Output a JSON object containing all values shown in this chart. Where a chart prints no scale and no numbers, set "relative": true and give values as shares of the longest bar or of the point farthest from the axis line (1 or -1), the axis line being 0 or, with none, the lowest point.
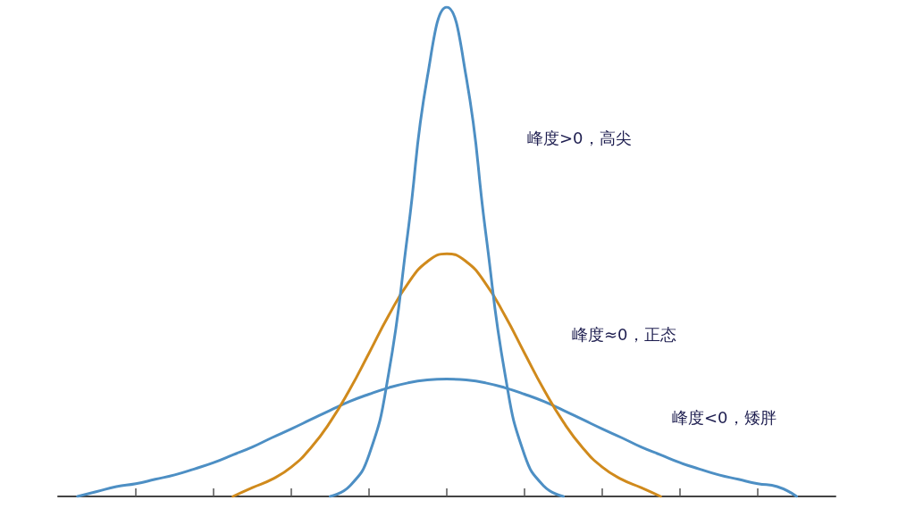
{
  "chart_data": {
    "type": "line",
    "relative": true,
    "marker": "none",
    "grid": false,
    "categories": [
      null,
      null,
      null,
      null,
      null,
      null,
      null,
      null,
      null,
      null,
      null,
      null,
      null,
      null,
      null,
      null,
      null,
      null,
      null,
      null,
      null,
      null,
      null,
      null,
      null,
      null,
      null,
      null,
      null,
      null,
      null,
      null,
      null,
      null,
      null,
      null,
      null,
      null,
      null,
      null,
      null
    ],
    "series": [
      {
        "color": "#4d8fc4",
        "values": [
          null,
          0,
          0.01,
          0.02,
          0.026,
          0.035,
          0.044,
          0.056,
          0.069,
          0.085,
          0.101,
          0.12,
          0.138,
          0.157,
          0.176,
          0.194,
          0.209,
          0.222,
          0.232,
          0.238,
          0.24,
          0.238,
          0.232,
          0.222,
          0.209,
          0.194,
          0.176,
          0.157,
          0.138,
          0.12,
          0.101,
          0.085,
          0.069,
          0.056,
          0.044,
          0.035,
          0.026,
          0.02,
          0,
          null,
          null
        ]
      },
      {
        "color": "#d08a1c",
        "values": [
          null,
          null,
          null,
          null,
          null,
          null,
          null,
          null,
          null,
          0,
          0.018,
          0.035,
          0.06,
          0.099,
          0.152,
          0.218,
          0.293,
          0.369,
          0.435,
          0.48,
          0.496,
          0.48,
          0.435,
          0.369,
          0.293,
          0.218,
          0.152,
          0.099,
          0.06,
          0.035,
          0.018,
          0,
          null,
          null,
          null,
          null,
          null,
          null,
          null,
          null,
          null
        ]
      },
      {
        "color": "#4d8fc4",
        "values": [
          null,
          null,
          null,
          null,
          null,
          null,
          null,
          null,
          null,
          null,
          null,
          null,
          null,
          null,
          0,
          0.021,
          0.085,
          0.249,
          0.54,
          0.857,
          1,
          0.857,
          0.54,
          0.249,
          0.085,
          0.021,
          0,
          null,
          null,
          null,
          null,
          null,
          null,
          null,
          null,
          null,
          null,
          null,
          null,
          null,
          null
        ]
      }
    ],
    "annotations": [
      "峰度>0，高尖",
      "峰度≈0，正态",
      "峰度<0，矮胖"
    ]
  }
}
